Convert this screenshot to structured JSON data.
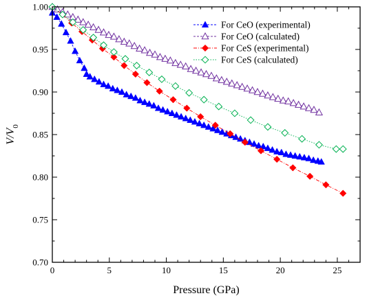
{
  "chart_data": {
    "type": "scatter",
    "xlabel": "Pressure (GPa)",
    "ylabel": "V/V",
    "ylabel_subscript": "0",
    "xlim": [
      0,
      27
    ],
    "ylim": [
      0.7,
      1.0
    ],
    "x_ticks": [
      0,
      5,
      10,
      15,
      20,
      25
    ],
    "y_ticks": [
      0.7,
      0.75,
      0.8,
      0.85,
      0.9,
      0.95,
      1.0
    ],
    "x_tick_labels": [
      "0",
      "5",
      "10",
      "15",
      "20",
      "25"
    ],
    "y_tick_labels": [
      "0.70",
      "0.75",
      "0.80",
      "0.85",
      "0.90",
      "0.95",
      "1.00"
    ],
    "grid": false,
    "legend_position": "top-right",
    "series": [
      {
        "name": "For CeO (experimental)",
        "color": "#0000ff",
        "marker": "triangle-filled",
        "line": "dashed",
        "x": [
          0,
          0.4,
          0.8,
          1.2,
          1.6,
          2.0,
          2.4,
          2.8,
          3.0,
          3.3,
          3.7,
          4.1,
          4.5,
          4.9,
          5.3,
          5.7,
          6.1,
          6.5,
          6.9,
          7.3,
          7.7,
          8.1,
          8.5,
          8.9,
          9.3,
          9.7,
          10.1,
          10.5,
          10.9,
          11.3,
          11.7,
          12.1,
          12.5,
          12.9,
          13.3,
          13.7,
          14.1,
          14.5,
          14.9,
          15.3,
          15.7,
          16.1,
          16.5,
          16.9,
          17.3,
          17.7,
          18.1,
          18.5,
          18.9,
          19.3,
          19.7,
          20.1,
          20.5,
          20.9,
          21.3,
          21.7,
          22.1,
          22.5,
          22.9,
          23.3,
          23.6
        ],
        "y": [
          0.993,
          0.988,
          0.98,
          0.97,
          0.96,
          0.948,
          0.937,
          0.928,
          0.921,
          0.918,
          0.915,
          0.912,
          0.909,
          0.907,
          0.904,
          0.902,
          0.9,
          0.897,
          0.895,
          0.893,
          0.89,
          0.888,
          0.886,
          0.884,
          0.881,
          0.879,
          0.877,
          0.875,
          0.873,
          0.871,
          0.869,
          0.867,
          0.865,
          0.863,
          0.861,
          0.859,
          0.857,
          0.855,
          0.853,
          0.851,
          0.849,
          0.847,
          0.845,
          0.843,
          0.841,
          0.839,
          0.837,
          0.836,
          0.834,
          0.832,
          0.83,
          0.829,
          0.827,
          0.826,
          0.825,
          0.824,
          0.823,
          0.822,
          0.82,
          0.819,
          0.818
        ]
      },
      {
        "name": "For CeO (calculated)",
        "color": "#7030a0",
        "marker": "triangle-open",
        "line": "dashed",
        "x": [
          0,
          0.45,
          0.9,
          1.35,
          1.8,
          2.25,
          2.7,
          3.15,
          3.6,
          4.05,
          4.5,
          4.95,
          5.4,
          5.85,
          6.3,
          6.75,
          7.2,
          7.65,
          8.1,
          8.55,
          9.0,
          9.45,
          9.9,
          10.35,
          10.8,
          11.25,
          11.7,
          12.15,
          12.6,
          13.05,
          13.5,
          13.95,
          14.4,
          14.85,
          15.3,
          15.75,
          16.2,
          16.65,
          17.1,
          17.55,
          18.0,
          18.45,
          18.9,
          19.35,
          19.8,
          20.25,
          20.7,
          21.15,
          21.6,
          22.05,
          22.5,
          22.95,
          23.4
        ],
        "y": [
          1.0,
          0.997,
          0.994,
          0.991,
          0.988,
          0.985,
          0.982,
          0.979,
          0.976,
          0.973,
          0.97,
          0.967,
          0.965,
          0.962,
          0.959,
          0.957,
          0.954,
          0.951,
          0.949,
          0.946,
          0.944,
          0.941,
          0.939,
          0.937,
          0.934,
          0.932,
          0.93,
          0.927,
          0.925,
          0.923,
          0.921,
          0.919,
          0.916,
          0.914,
          0.912,
          0.91,
          0.908,
          0.906,
          0.904,
          0.902,
          0.9,
          0.898,
          0.896,
          0.894,
          0.892,
          0.89,
          0.889,
          0.887,
          0.885,
          0.883,
          0.881,
          0.879,
          0.876
        ]
      },
      {
        "name": "For CeS (experimental)",
        "color": "#ff0000",
        "marker": "diamond-filled",
        "line": "dash-dot",
        "x": [
          0,
          0.9,
          1.7,
          2.6,
          3.5,
          4.4,
          5.4,
          6.3,
          7.3,
          8.3,
          9.4,
          10.6,
          11.8,
          13.0,
          14.3,
          15.6,
          16.9,
          18.3,
          19.7,
          21.1,
          22.6,
          24.0,
          25.5
        ],
        "y": [
          1.0,
          0.991,
          0.981,
          0.971,
          0.961,
          0.951,
          0.941,
          0.931,
          0.921,
          0.911,
          0.901,
          0.891,
          0.881,
          0.871,
          0.861,
          0.851,
          0.841,
          0.831,
          0.821,
          0.811,
          0.801,
          0.791,
          0.781
        ]
      },
      {
        "name": "For CeS (calculated)",
        "color": "#00b050",
        "marker": "diamond-open",
        "line": "dotted",
        "x": [
          0,
          0.9,
          1.8,
          2.7,
          3.6,
          4.5,
          5.4,
          6.4,
          7.4,
          8.5,
          9.6,
          10.8,
          12.0,
          13.3,
          14.6,
          16.0,
          17.4,
          18.9,
          20.4,
          21.9,
          23.4,
          24.9,
          25.5
        ],
        "y": [
          1.0,
          0.991,
          0.982,
          0.973,
          0.964,
          0.955,
          0.947,
          0.939,
          0.931,
          0.923,
          0.915,
          0.907,
          0.899,
          0.891,
          0.883,
          0.875,
          0.867,
          0.859,
          0.852,
          0.845,
          0.838,
          0.833,
          0.833
        ]
      }
    ]
  }
}
